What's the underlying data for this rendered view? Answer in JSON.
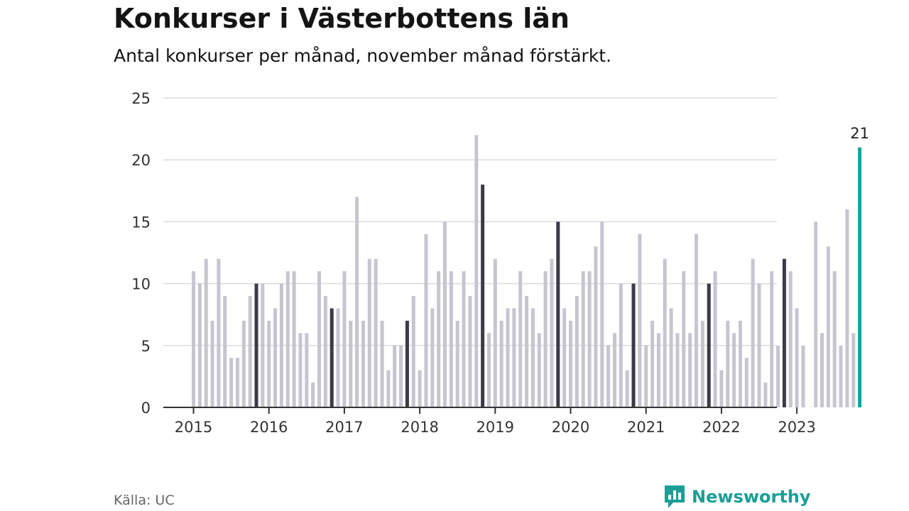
{
  "title": "Konkurser i Västerbottens län",
  "subtitle": "Antal konkurser per månad, november månad förstärkt.",
  "source": "Källa: UC",
  "brand": {
    "name": "Newsworthy",
    "icon": "newsworthy-logo-icon"
  },
  "colors": {
    "bar": "#c6c5d0",
    "highlight": "#3a3a48",
    "current": "#10a39a",
    "grid": "#dcdcdc",
    "axis": "#333333",
    "brand": "#1a9e96"
  },
  "chart_data": {
    "type": "bar",
    "ylim": [
      0,
      25
    ],
    "yticks": [
      0,
      5,
      10,
      15,
      20,
      25
    ],
    "x_tick_labels": [
      "2015",
      "2016",
      "2017",
      "2018",
      "2019",
      "2020",
      "2021",
      "2022",
      "2023"
    ],
    "start_month": "2015-01",
    "highlight_month": "november",
    "annotation": {
      "text": "21",
      "month": "2023-11"
    },
    "grid": true,
    "values": [
      11,
      10,
      12,
      7,
      12,
      9,
      4,
      4,
      7,
      9,
      10,
      10,
      7,
      8,
      10,
      11,
      11,
      6,
      6,
      2,
      11,
      9,
      8,
      8,
      11,
      7,
      17,
      7,
      12,
      12,
      7,
      3,
      5,
      5,
      7,
      9,
      3,
      14,
      8,
      11,
      15,
      11,
      7,
      11,
      9,
      22,
      18,
      6,
      12,
      7,
      8,
      8,
      11,
      9,
      8,
      6,
      11,
      12,
      15,
      8,
      7,
      9,
      11,
      11,
      13,
      15,
      5,
      6,
      10,
      3,
      10,
      14,
      5,
      7,
      6,
      12,
      8,
      6,
      11,
      6,
      14,
      7,
      10,
      11,
      3,
      7,
      6,
      7,
      4,
      12,
      10,
      2,
      11,
      5,
      12,
      11,
      8,
      5,
      0,
      15,
      6,
      13,
      11,
      5,
      16,
      6,
      21
    ]
  }
}
